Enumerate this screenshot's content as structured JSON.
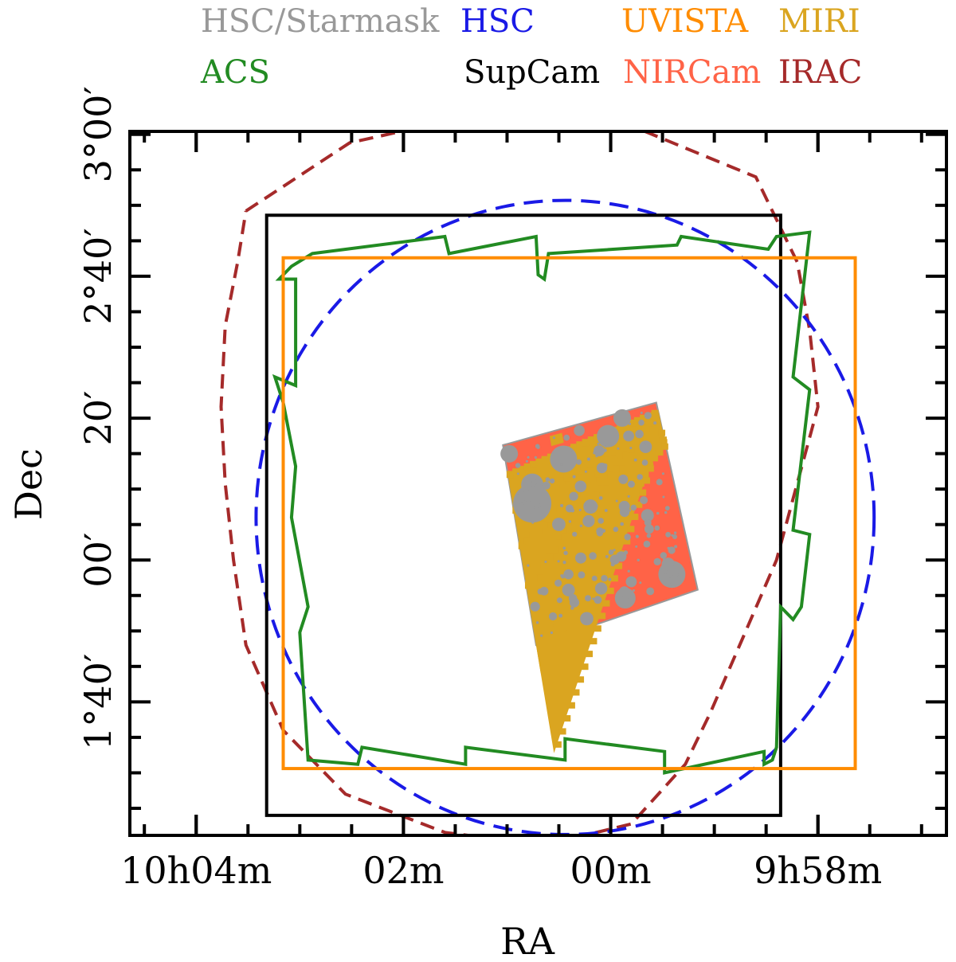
{
  "chart_data": {
    "type": "footprint-map",
    "xlabel": "RA",
    "ylabel": "Dec",
    "x_axis_direction": "RA increases to the left",
    "xlim_deg": [
      151.16,
      149.19
    ],
    "ylim_deg": [
      1.353,
      3.007
    ],
    "x_ticks": [
      {
        "value_deg": 151.0,
        "label": "10h04m"
      },
      {
        "value_deg": 150.5,
        "label": "02m"
      },
      {
        "value_deg": 150.0,
        "label": "00m"
      },
      {
        "value_deg": 149.5,
        "label": "9h58m"
      }
    ],
    "y_ticks": [
      {
        "value_deg": 3.0,
        "label": "3°00′"
      },
      {
        "value_deg": 2.6667,
        "label": "2°40′"
      },
      {
        "value_deg": 2.3333,
        "label": "20′"
      },
      {
        "value_deg": 2.0,
        "label": "00′"
      },
      {
        "value_deg": 1.6667,
        "label": "1°40′"
      }
    ],
    "legend": [
      {
        "name": "HSC/Starmask",
        "color": "#999999"
      },
      {
        "name": "HSC",
        "color": "#1a1ae6"
      },
      {
        "name": "UVISTA",
        "color": "#ff8c00"
      },
      {
        "name": "MIRI",
        "color": "#daa520"
      },
      {
        "name": "ACS",
        "color": "#228b22"
      },
      {
        "name": "SupCam",
        "color": "#000000"
      },
      {
        "name": "NIRCam",
        "color": "#ff6347"
      },
      {
        "name": "IRAC",
        "color": "#a52a2a"
      }
    ],
    "series": [
      {
        "name": "SupCam",
        "shape": "rectangle",
        "style": "solid",
        "color": "#000000",
        "ra_range": [
          149.59,
          150.83
        ],
        "dec_range": [
          1.4,
          2.81
        ]
      },
      {
        "name": "UVISTA",
        "shape": "rectangle",
        "style": "solid",
        "color": "#ff8c00",
        "ra_range": [
          149.41,
          150.79
        ],
        "dec_range": [
          1.51,
          2.71
        ]
      },
      {
        "name": "HSC",
        "shape": "circle",
        "style": "dashed",
        "color": "#1a1ae6",
        "center_ra": 150.11,
        "center_dec": 2.1,
        "radius_deg": 0.745
      },
      {
        "name": "IRAC",
        "shape": "outline",
        "style": "dashed",
        "color": "#a52a2a",
        "ra": [
          150.88,
          150.63,
          150.4,
          150.0,
          149.65,
          149.55,
          149.52,
          149.5,
          149.55,
          149.6,
          149.68,
          149.76,
          149.82,
          149.95,
          150.16,
          150.4,
          150.64,
          150.79,
          150.88,
          150.91,
          150.93,
          150.94,
          150.93,
          150.9,
          150.88
        ],
        "dec": [
          2.82,
          2.98,
          3.03,
          3.04,
          2.9,
          2.7,
          2.54,
          2.36,
          2.18,
          2.0,
          1.82,
          1.64,
          1.52,
          1.38,
          1.33,
          1.36,
          1.45,
          1.6,
          1.8,
          2.0,
          2.18,
          2.36,
          2.55,
          2.7,
          2.82
        ]
      },
      {
        "name": "ACS",
        "shape": "polygon",
        "style": "solid",
        "color": "#228b22",
        "ra": [
          150.72,
          150.4,
          150.39,
          150.18,
          150.175,
          150.16,
          150.15,
          149.84,
          149.83,
          149.62,
          149.6,
          149.52,
          149.56,
          149.52,
          149.56,
          149.52,
          149.54,
          149.56,
          149.59,
          149.6,
          149.61,
          149.63,
          149.63,
          149.87,
          149.87,
          150.11,
          150.11,
          150.35,
          150.35,
          150.6,
          150.61,
          150.73,
          150.75,
          150.73,
          150.77,
          150.76,
          150.79,
          150.81,
          150.76,
          150.76,
          150.8,
          150.77,
          150.72
        ],
        "dec": [
          2.72,
          2.76,
          2.72,
          2.76,
          2.67,
          2.66,
          2.72,
          2.74,
          2.76,
          2.73,
          2.76,
          2.77,
          2.43,
          2.4,
          2.07,
          2.06,
          1.89,
          1.86,
          1.89,
          1.56,
          1.53,
          1.52,
          1.55,
          1.5,
          1.55,
          1.58,
          1.53,
          1.56,
          1.52,
          1.56,
          1.52,
          1.53,
          1.83,
          1.89,
          2.1,
          2.22,
          2.37,
          2.43,
          2.41,
          2.66,
          2.66,
          2.69,
          2.72
        ]
      },
      {
        "name": "NIRCam",
        "shape": "quadrilateral",
        "style": "filled",
        "color": "#ff6347",
        "ra": [
          150.26,
          149.89,
          149.79,
          150.18
        ],
        "dec": [
          2.27,
          2.37,
          1.93,
          1.8
        ]
      },
      {
        "name": "MIRI",
        "shape": "stripes",
        "style": "filled",
        "color": "#daa520",
        "stripe_count": 4,
        "direction": "diagonal"
      },
      {
        "name": "HSC/Starmask",
        "shape": "masked-regions",
        "style": "filled",
        "color": "#999999",
        "count_shown": "approximate"
      }
    ]
  }
}
